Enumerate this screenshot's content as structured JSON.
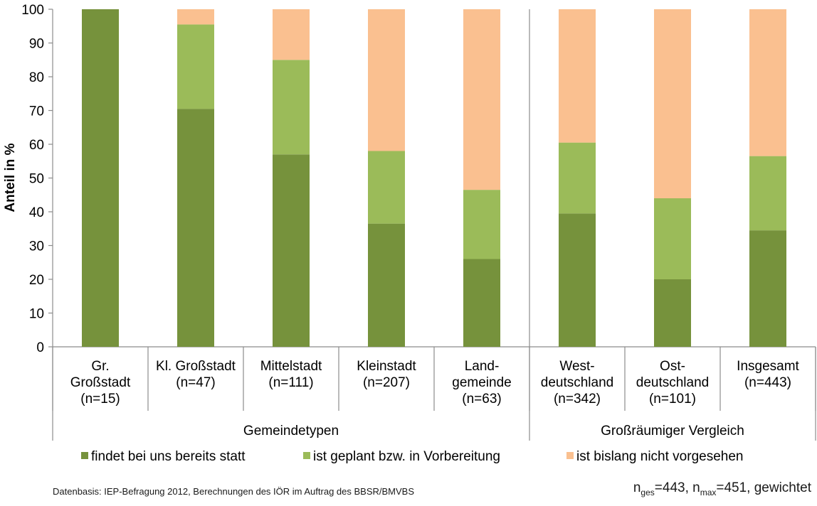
{
  "chart_data": {
    "type": "bar",
    "stacked": true,
    "ylabel": "Anteil in %",
    "ylim": [
      0,
      100
    ],
    "yticks": [
      0,
      10,
      20,
      30,
      40,
      50,
      60,
      70,
      80,
      90,
      100
    ],
    "grid": false,
    "legend_position": "bottom",
    "categories": [
      [
        "Gr.",
        "Großstadt",
        "(n=15)"
      ],
      [
        "Kl. Großstadt",
        "(n=47)"
      ],
      [
        "Mittelstadt",
        "(n=111)"
      ],
      [
        "Kleinstadt",
        "(n=207)"
      ],
      [
        "Land-",
        "gemeinde",
        "(n=63)"
      ],
      [
        "West-",
        "deutschland",
        "(n=342)"
      ],
      [
        "Ost-",
        "deutschland",
        "(n=101)"
      ],
      [
        "Insgesamt",
        "(n=443)"
      ]
    ],
    "groups": [
      {
        "label": "Gemeindetypen",
        "count": 5
      },
      {
        "label": "Großräumiger Vergleich",
        "count": 3
      }
    ],
    "series": [
      {
        "name": "findet bei uns bereits statt",
        "color": "#76923c",
        "values": [
          100,
          70.5,
          57,
          36.5,
          26,
          39.5,
          20,
          34.5
        ]
      },
      {
        "name": "ist geplant bzw. in Vorbereitung",
        "color": "#9bbb59",
        "values": [
          0,
          25,
          28,
          21.5,
          20.5,
          21,
          24,
          22
        ]
      },
      {
        "name": "ist bislang nicht vorgesehen",
        "color": "#fac090",
        "values": [
          0,
          4.5,
          15,
          42,
          53.5,
          39.5,
          56,
          43.5
        ]
      }
    ]
  },
  "footer": {
    "source": "Datenbasis: IEP-Befragung 2012, Berechnungen des IÖR im Auftrag des BBSR/BMVBS",
    "n_prefix": "n",
    "n_ges_sub": "ges",
    "n_ges_value": "=443, n",
    "n_max_sub": "max",
    "n_max_value": "=451, gewichtet"
  }
}
